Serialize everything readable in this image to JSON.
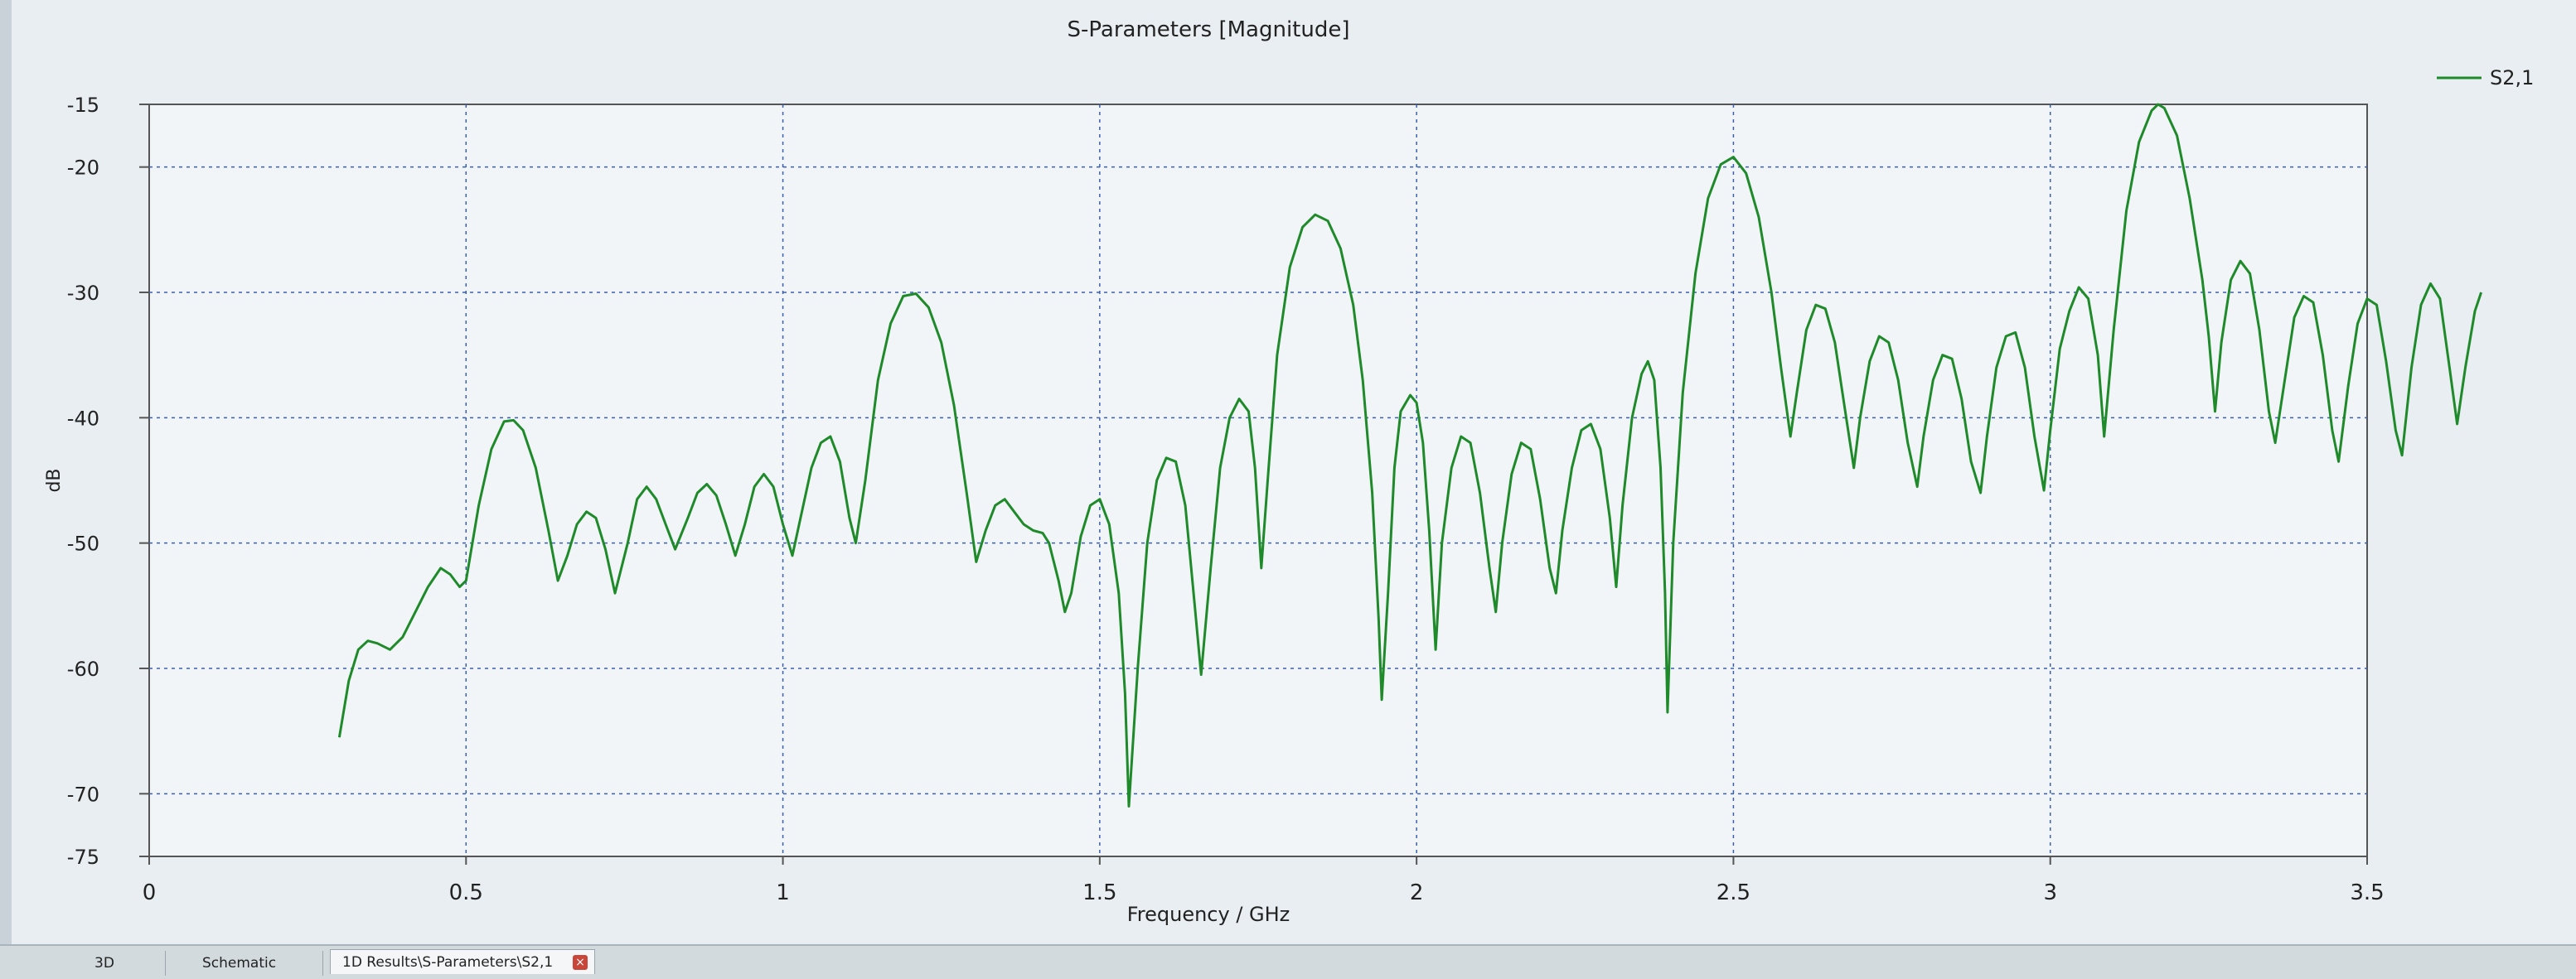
{
  "chart_data": {
    "type": "line",
    "title": "S-Parameters [Magnitude]",
    "xlabel": "Frequency / GHz",
    "ylabel": "dB",
    "xlim": [
      0,
      3.5
    ],
    "ylim": [
      -75,
      -15
    ],
    "x_ticks": [
      {
        "value": 0,
        "label": "0"
      },
      {
        "value": 0.5,
        "label": "0.5"
      },
      {
        "value": 1,
        "label": "1"
      },
      {
        "value": 1.5,
        "label": "1.5"
      },
      {
        "value": 2,
        "label": "2"
      },
      {
        "value": 2.5,
        "label": "2.5"
      },
      {
        "value": 3,
        "label": "3"
      },
      {
        "value": 3.5,
        "label": "3.5"
      }
    ],
    "y_ticks": [
      {
        "value": -15,
        "label": "-15"
      },
      {
        "value": -20,
        "label": "-20"
      },
      {
        "value": -30,
        "label": "-30"
      },
      {
        "value": -40,
        "label": "-40"
      },
      {
        "value": -50,
        "label": "-50"
      },
      {
        "value": -60,
        "label": "-60"
      },
      {
        "value": -70,
        "label": "-70"
      },
      {
        "value": -75,
        "label": "-75"
      }
    ],
    "grid": true,
    "legend_position": "top-right",
    "series": [
      {
        "name": "S2,1",
        "color": "#1e8a2a",
        "points": [
          [
            0.3,
            -65.5
          ],
          [
            0.315,
            -61
          ],
          [
            0.33,
            -58.5
          ],
          [
            0.345,
            -57.8
          ],
          [
            0.36,
            -58
          ],
          [
            0.38,
            -58.5
          ],
          [
            0.4,
            -57.5
          ],
          [
            0.42,
            -55.5
          ],
          [
            0.44,
            -53.5
          ],
          [
            0.46,
            -52
          ],
          [
            0.475,
            -52.5
          ],
          [
            0.49,
            -53.5
          ],
          [
            0.5,
            -53
          ],
          [
            0.52,
            -47
          ],
          [
            0.54,
            -42.5
          ],
          [
            0.56,
            -40.3
          ],
          [
            0.575,
            -40.2
          ],
          [
            0.59,
            -41
          ],
          [
            0.61,
            -44
          ],
          [
            0.63,
            -49
          ],
          [
            0.645,
            -53
          ],
          [
            0.66,
            -51
          ],
          [
            0.675,
            -48.5
          ],
          [
            0.69,
            -47.5
          ],
          [
            0.705,
            -48
          ],
          [
            0.72,
            -50.5
          ],
          [
            0.735,
            -54
          ],
          [
            0.755,
            -50
          ],
          [
            0.77,
            -46.5
          ],
          [
            0.785,
            -45.5
          ],
          [
            0.8,
            -46.5
          ],
          [
            0.815,
            -48.5
          ],
          [
            0.83,
            -50.5
          ],
          [
            0.85,
            -48
          ],
          [
            0.865,
            -46
          ],
          [
            0.88,
            -45.3
          ],
          [
            0.895,
            -46.2
          ],
          [
            0.91,
            -48.5
          ],
          [
            0.925,
            -51
          ],
          [
            0.94,
            -48.5
          ],
          [
            0.955,
            -45.5
          ],
          [
            0.97,
            -44.5
          ],
          [
            0.985,
            -45.5
          ],
          [
            1.0,
            -48.5
          ],
          [
            1.015,
            -51
          ],
          [
            1.03,
            -47.5
          ],
          [
            1.045,
            -44
          ],
          [
            1.06,
            -42
          ],
          [
            1.075,
            -41.5
          ],
          [
            1.09,
            -43.5
          ],
          [
            1.105,
            -48
          ],
          [
            1.115,
            -50
          ],
          [
            1.13,
            -45
          ],
          [
            1.15,
            -37
          ],
          [
            1.17,
            -32.5
          ],
          [
            1.19,
            -30.3
          ],
          [
            1.21,
            -30.1
          ],
          [
            1.23,
            -31.2
          ],
          [
            1.25,
            -34
          ],
          [
            1.27,
            -39
          ],
          [
            1.29,
            -46
          ],
          [
            1.305,
            -51.5
          ],
          [
            1.32,
            -49
          ],
          [
            1.335,
            -47
          ],
          [
            1.35,
            -46.5
          ],
          [
            1.365,
            -47.5
          ],
          [
            1.38,
            -48.5
          ],
          [
            1.395,
            -49
          ],
          [
            1.41,
            -49.2
          ],
          [
            1.42,
            -50
          ],
          [
            1.435,
            -53
          ],
          [
            1.445,
            -55.5
          ],
          [
            1.455,
            -54
          ],
          [
            1.47,
            -49.5
          ],
          [
            1.485,
            -47
          ],
          [
            1.5,
            -46.5
          ],
          [
            1.515,
            -48.5
          ],
          [
            1.53,
            -54
          ],
          [
            1.54,
            -62
          ],
          [
            1.546,
            -71
          ],
          [
            1.56,
            -60
          ],
          [
            1.575,
            -50
          ],
          [
            1.59,
            -45
          ],
          [
            1.605,
            -43.2
          ],
          [
            1.62,
            -43.5
          ],
          [
            1.635,
            -47
          ],
          [
            1.65,
            -55
          ],
          [
            1.66,
            -60.5
          ],
          [
            1.675,
            -52
          ],
          [
            1.69,
            -44
          ],
          [
            1.705,
            -40
          ],
          [
            1.72,
            -38.5
          ],
          [
            1.735,
            -39.5
          ],
          [
            1.745,
            -44
          ],
          [
            1.755,
            -52
          ],
          [
            1.765,
            -45
          ],
          [
            1.78,
            -35
          ],
          [
            1.8,
            -28
          ],
          [
            1.82,
            -24.8
          ],
          [
            1.84,
            -23.8
          ],
          [
            1.86,
            -24.3
          ],
          [
            1.88,
            -26.5
          ],
          [
            1.9,
            -31
          ],
          [
            1.915,
            -37
          ],
          [
            1.93,
            -46
          ],
          [
            1.94,
            -56
          ],
          [
            1.945,
            -62.5
          ],
          [
            1.955,
            -54
          ],
          [
            1.965,
            -44
          ],
          [
            1.975,
            -39.5
          ],
          [
            1.99,
            -38.2
          ],
          [
            2.0,
            -38.8
          ],
          [
            2.01,
            -42
          ],
          [
            2.02,
            -49
          ],
          [
            2.03,
            -58.5
          ],
          [
            2.04,
            -50
          ],
          [
            2.055,
            -44
          ],
          [
            2.07,
            -41.5
          ],
          [
            2.085,
            -42
          ],
          [
            2.1,
            -46
          ],
          [
            2.115,
            -52
          ],
          [
            2.125,
            -55.5
          ],
          [
            2.135,
            -50
          ],
          [
            2.15,
            -44.5
          ],
          [
            2.165,
            -42
          ],
          [
            2.18,
            -42.5
          ],
          [
            2.195,
            -46.5
          ],
          [
            2.21,
            -52
          ],
          [
            2.22,
            -54
          ],
          [
            2.23,
            -49
          ],
          [
            2.245,
            -44
          ],
          [
            2.26,
            -41
          ],
          [
            2.275,
            -40.5
          ],
          [
            2.29,
            -42.5
          ],
          [
            2.305,
            -48
          ],
          [
            2.315,
            -53.5
          ],
          [
            2.325,
            -47
          ],
          [
            2.34,
            -40
          ],
          [
            2.355,
            -36.5
          ],
          [
            2.365,
            -35.5
          ],
          [
            2.375,
            -37
          ],
          [
            2.385,
            -44
          ],
          [
            2.392,
            -54
          ],
          [
            2.396,
            -63.5
          ],
          [
            2.405,
            -50
          ],
          [
            2.42,
            -38
          ],
          [
            2.44,
            -28.5
          ],
          [
            2.46,
            -22.5
          ],
          [
            2.48,
            -19.8
          ],
          [
            2.5,
            -19.2
          ],
          [
            2.52,
            -20.5
          ],
          [
            2.54,
            -24
          ],
          [
            2.56,
            -30
          ],
          [
            2.575,
            -36
          ],
          [
            2.59,
            -41.5
          ],
          [
            2.6,
            -38
          ],
          [
            2.615,
            -33
          ],
          [
            2.63,
            -31
          ],
          [
            2.645,
            -31.3
          ],
          [
            2.66,
            -34
          ],
          [
            2.675,
            -39
          ],
          [
            2.69,
            -44
          ],
          [
            2.7,
            -40
          ],
          [
            2.715,
            -35.5
          ],
          [
            2.73,
            -33.5
          ],
          [
            2.745,
            -34
          ],
          [
            2.76,
            -37
          ],
          [
            2.775,
            -42
          ],
          [
            2.79,
            -45.5
          ],
          [
            2.8,
            -41.5
          ],
          [
            2.815,
            -37
          ],
          [
            2.83,
            -35
          ],
          [
            2.845,
            -35.3
          ],
          [
            2.86,
            -38.5
          ],
          [
            2.875,
            -43.5
          ],
          [
            2.89,
            -46
          ],
          [
            2.9,
            -41.5
          ],
          [
            2.915,
            -36
          ],
          [
            2.93,
            -33.5
          ],
          [
            2.945,
            -33.2
          ],
          [
            2.96,
            -36
          ],
          [
            2.975,
            -41.5
          ],
          [
            2.99,
            -45.8
          ],
          [
            3.0,
            -41
          ],
          [
            3.015,
            -34.5
          ],
          [
            3.03,
            -31.5
          ],
          [
            3.045,
            -29.6
          ],
          [
            3.06,
            -30.5
          ],
          [
            3.075,
            -35
          ],
          [
            3.085,
            -41.5
          ],
          [
            3.1,
            -33
          ],
          [
            3.12,
            -23.5
          ],
          [
            3.14,
            -18
          ],
          [
            3.16,
            -15.5
          ],
          [
            3.17,
            -15
          ],
          [
            3.18,
            -15.3
          ],
          [
            3.2,
            -17.5
          ],
          [
            3.22,
            -22.5
          ],
          [
            3.24,
            -29
          ],
          [
            3.25,
            -33.5
          ],
          [
            3.26,
            -39.5
          ],
          [
            3.27,
            -34
          ],
          [
            3.285,
            -29
          ],
          [
            3.3,
            -27.5
          ],
          [
            3.315,
            -28.5
          ],
          [
            3.33,
            -33
          ],
          [
            3.345,
            -39.5
          ],
          [
            3.355,
            -42
          ],
          [
            3.37,
            -37
          ],
          [
            3.385,
            -32
          ],
          [
            3.4,
            -30.3
          ],
          [
            3.415,
            -30.8
          ],
          [
            3.43,
            -35
          ],
          [
            3.445,
            -41
          ],
          [
            3.455,
            -43.5
          ],
          [
            3.47,
            -37.5
          ],
          [
            3.485,
            -32.5
          ],
          [
            3.5,
            -30.5
          ],
          [
            3.515,
            -31
          ],
          [
            3.53,
            -35.5
          ],
          [
            3.545,
            -41
          ],
          [
            3.555,
            -43
          ],
          [
            3.57,
            -36
          ],
          [
            3.585,
            -31
          ],
          [
            3.6,
            -29.3
          ],
          [
            3.615,
            -30.5
          ],
          [
            3.63,
            -36
          ],
          [
            3.642,
            -40.5
          ],
          [
            3.655,
            -36
          ],
          [
            3.67,
            -31.5
          ],
          [
            3.68,
            -30
          ]
        ]
      }
    ]
  },
  "tabs": [
    {
      "label": "3D"
    },
    {
      "label": "Schematic"
    },
    {
      "label": "1D Results\\S-Parameters\\S2,1"
    }
  ],
  "tab_close_glyph": "×"
}
